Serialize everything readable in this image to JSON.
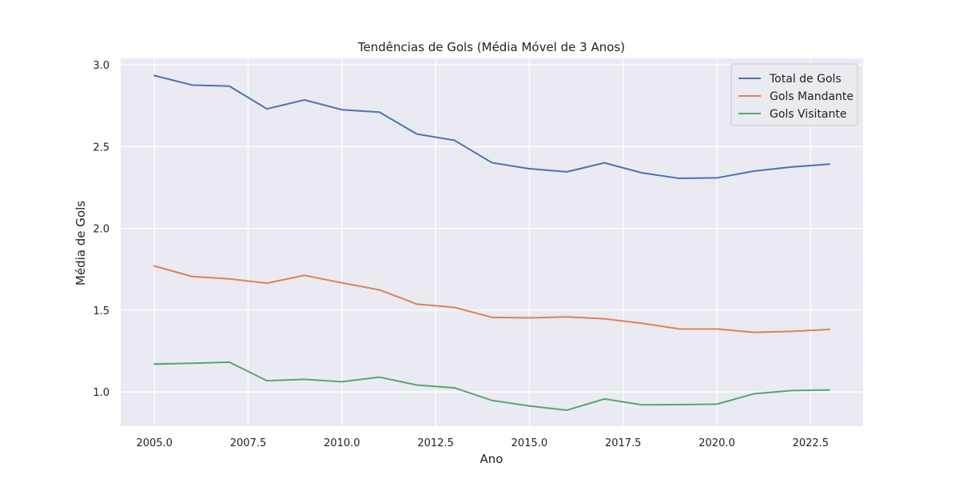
{
  "chart_data": {
    "type": "line",
    "title": "Tendências de Gols (Média Móvel de 3 Anos)",
    "xlabel": "Ano",
    "ylabel": "Média de Gols",
    "xlim": [
      2004.1,
      2023.9
    ],
    "ylim": [
      0.79,
      3.04
    ],
    "x_ticks": [
      2005.0,
      2007.5,
      2010.0,
      2012.5,
      2015.0,
      2017.5,
      2020.0,
      2022.5
    ],
    "x_tick_labels": [
      "2005.0",
      "2007.5",
      "2010.0",
      "2012.5",
      "2015.0",
      "2017.5",
      "2020.0",
      "2022.5"
    ],
    "y_ticks": [
      1.0,
      1.5,
      2.0,
      2.5,
      3.0
    ],
    "y_tick_labels": [
      "1.0",
      "1.5",
      "2.0",
      "2.5",
      "3.0"
    ],
    "grid": true,
    "legend_position": "top-right",
    "background_color": "#eaeaf2",
    "grid_color": "#ffffff",
    "x": [
      2005,
      2006,
      2007,
      2008,
      2009,
      2010,
      2011,
      2012,
      2013,
      2014,
      2015,
      2016,
      2017,
      2018,
      2019,
      2020,
      2021,
      2022,
      2023
    ],
    "series": [
      {
        "name": "Total de Gols",
        "color": "#4c72b0",
        "values": [
          2.935,
          2.877,
          2.87,
          2.731,
          2.786,
          2.726,
          2.711,
          2.577,
          2.539,
          2.402,
          2.365,
          2.346,
          2.401,
          2.34,
          2.306,
          2.309,
          2.351,
          2.376,
          2.393
        ]
      },
      {
        "name": "Gols Mandante",
        "color": "#dd8452",
        "values": [
          1.77,
          1.706,
          1.691,
          1.665,
          1.713,
          1.667,
          1.624,
          1.537,
          1.517,
          1.456,
          1.453,
          1.459,
          1.447,
          1.42,
          1.385,
          1.385,
          1.364,
          1.37,
          1.382
        ]
      },
      {
        "name": "Gols Visitante",
        "color": "#55a868",
        "values": [
          1.17,
          1.175,
          1.182,
          1.068,
          1.077,
          1.062,
          1.09,
          1.042,
          1.025,
          0.948,
          0.914,
          0.888,
          0.957,
          0.921,
          0.922,
          0.925,
          0.989,
          1.008,
          1.012
        ]
      }
    ]
  }
}
